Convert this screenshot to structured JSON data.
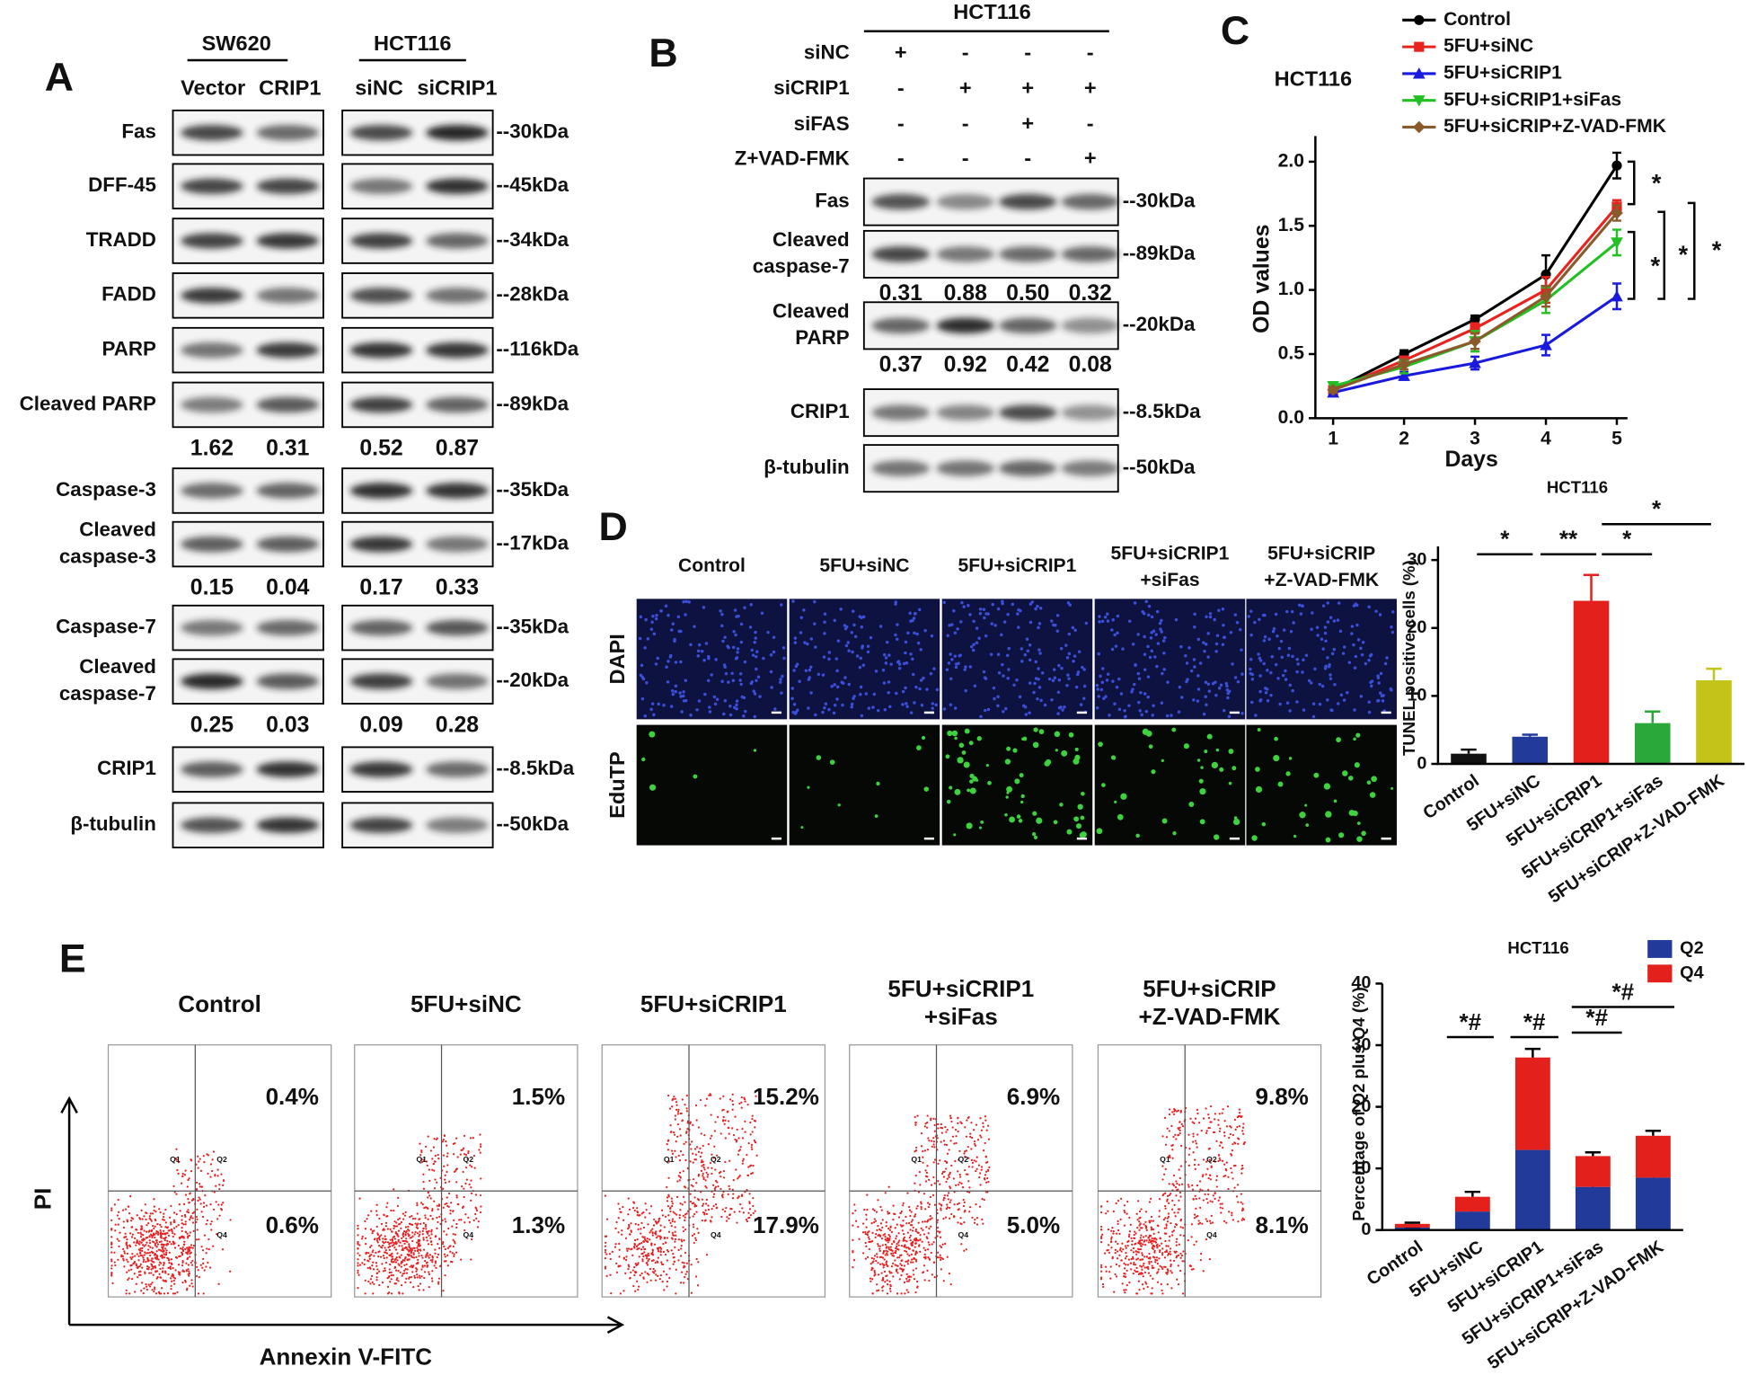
{
  "panel_a": {
    "label": "A",
    "groups": [
      {
        "name": "SW620",
        "lanes": [
          "Vector",
          "CRIP1"
        ]
      },
      {
        "name": "HCT116",
        "lanes": [
          "siNC",
          "siCRIP1"
        ]
      }
    ],
    "rows": [
      {
        "label": [
          "Fas"
        ],
        "size": "--30kDa"
      },
      {
        "label": [
          "DFF-45"
        ],
        "size": "--45kDa"
      },
      {
        "label": [
          "TRADD"
        ],
        "size": "--34kDa"
      },
      {
        "label": [
          "FADD"
        ],
        "size": "--28kDa"
      },
      {
        "label": [
          "PARP"
        ],
        "size": "--116kDa"
      },
      {
        "label": [
          "Cleaved PARP"
        ],
        "size": "--89kDa",
        "quant": [
          "1.62",
          "0.31",
          "0.52",
          "0.87"
        ]
      },
      {
        "label": [
          "Caspase-3"
        ],
        "size": "--35kDa"
      },
      {
        "label": [
          "Cleaved",
          "caspase-3"
        ],
        "size": "--17kDa",
        "quant": [
          "0.15",
          "0.04",
          "0.17",
          "0.33"
        ]
      },
      {
        "label": [
          "Caspase-7"
        ],
        "size": "--35kDa"
      },
      {
        "label": [
          "Cleaved",
          "caspase-7"
        ],
        "size": "--20kDa",
        "quant": [
          "0.25",
          "0.03",
          "0.09",
          "0.28"
        ]
      },
      {
        "label": [
          "CRIP1"
        ],
        "size": "--8.5kDa"
      },
      {
        "label": [
          "β-tubulin"
        ],
        "size": "--50kDa"
      }
    ]
  },
  "panel_b": {
    "label": "B",
    "header": "HCT116",
    "conditions": [
      {
        "name": "siNC",
        "signs": [
          "+",
          "-",
          "-",
          "-"
        ]
      },
      {
        "name": "siCRIP1",
        "signs": [
          "-",
          "+",
          "+",
          "+"
        ]
      },
      {
        "name": "siFAS",
        "signs": [
          "-",
          "-",
          "+",
          "-"
        ]
      },
      {
        "name": "Z+VAD-FMK",
        "signs": [
          "-",
          "-",
          "-",
          "+"
        ]
      }
    ],
    "rows": [
      {
        "label": [
          "Fas"
        ],
        "size": "--30kDa"
      },
      {
        "label": [
          "Cleaved",
          "caspase-7"
        ],
        "size": "--89kDa",
        "quant": [
          "0.31",
          "0.88",
          "0.50",
          "0.32"
        ]
      },
      {
        "label": [
          "Cleaved",
          "PARP"
        ],
        "size": "--20kDa",
        "quant": [
          "0.37",
          "0.92",
          "0.42",
          "0.08"
        ]
      },
      {
        "label": [
          "CRIP1"
        ],
        "size": "--8.5kDa"
      },
      {
        "label": [
          "β-tubulin"
        ],
        "size": "--50kDa"
      }
    ]
  },
  "panel_c": {
    "label": "C"
  },
  "panel_d": {
    "label": "D",
    "columns": [
      [
        "Control"
      ],
      [
        "5FU+siNC"
      ],
      [
        "5FU+siCRIP1"
      ],
      [
        "5FU+siCRIP1",
        "+siFas"
      ],
      [
        "5FU+siCRIP",
        "+Z-VAD-FMK"
      ]
    ],
    "rows": [
      "DAPI",
      "EduTP"
    ]
  },
  "panel_e": {
    "label": "E",
    "columns": [
      [
        "Control"
      ],
      [
        "5FU+siNC"
      ],
      [
        "5FU+siCRIP1"
      ],
      [
        "5FU+siCRIP1",
        "+siFas"
      ],
      [
        "5FU+siCRIP",
        "+Z-VAD-FMK"
      ]
    ],
    "q2": [
      "0.4%",
      "1.5%",
      "15.2%",
      "6.9%",
      "9.8%"
    ],
    "q4": [
      "0.6%",
      "1.3%",
      "17.9%",
      "5.0%",
      "8.1%"
    ],
    "quadrants": [
      "Q1",
      "Q2",
      "Q4"
    ],
    "y_label": "PI",
    "x_label": "Annexin V-FITC"
  },
  "chart_data": [
    {
      "type": "line",
      "title": "HCT116",
      "x_label": "Days",
      "y_label": "OD values",
      "x": [
        1,
        2,
        3,
        4,
        5
      ],
      "xlim": [
        0.75,
        5.15
      ],
      "xticks": [
        1,
        2,
        3,
        4,
        5
      ],
      "ylim": [
        0,
        2.2
      ],
      "yticks": [
        {
          "value": 0,
          "label": "0.0"
        },
        0.5,
        {
          "value": 1,
          "label": "1.0"
        },
        1.5,
        {
          "value": 2,
          "label": "2.0"
        }
      ],
      "series": [
        {
          "name": "Control",
          "color": "#000000",
          "marker": "circle",
          "values": [
            0.22,
            0.5,
            0.77,
            1.12,
            1.97
          ],
          "errors": [
            0.02,
            0.03,
            0.03,
            0.15,
            0.1
          ]
        },
        {
          "name": "5FU+siNC",
          "color": "#e8231f",
          "marker": "square",
          "values": [
            0.22,
            0.45,
            0.7,
            1.0,
            1.65
          ],
          "errors": [
            0.02,
            0.03,
            0.04,
            0.1,
            0.05
          ]
        },
        {
          "name": "5FU+siCRIP1",
          "color": "#1a1adf",
          "marker": "triangle-up",
          "values": [
            0.2,
            0.33,
            0.43,
            0.57,
            0.95
          ],
          "errors": [
            0.02,
            0.03,
            0.05,
            0.08,
            0.1
          ]
        },
        {
          "name": "5FU+siCRIP1+siFas",
          "color": "#22c022",
          "marker": "triangle-down",
          "values": [
            0.25,
            0.4,
            0.6,
            0.92,
            1.37
          ],
          "errors": [
            0.03,
            0.05,
            0.08,
            0.1,
            0.1
          ]
        },
        {
          "name": "5FU+siCRIP+Z-VAD-FMK",
          "color": "#8b5a2b",
          "marker": "diamond",
          "values": [
            0.22,
            0.42,
            0.6,
            0.95,
            1.6
          ],
          "errors": [
            0.02,
            0.04,
            0.06,
            0.08,
            0.06
          ]
        }
      ],
      "annotations": [
        "*",
        "*",
        "*",
        "*"
      ]
    },
    {
      "type": "bar",
      "title": "HCT116",
      "y_label": "TUNEL positive cells (%)",
      "categories": [
        "Control",
        "5FU+siNC",
        "5FU+siCRIP1",
        "5FU+siCRIP1+siFas",
        "5FU+siCRIP+Z-VAD-FMK"
      ],
      "values": [
        1.5,
        4,
        24,
        6,
        12.3
      ],
      "errors": [
        0.6,
        0.3,
        3.8,
        1.7,
        1.7
      ],
      "colors": [
        "#111111",
        "#223a9a",
        "#e3201b",
        "#2aa83a",
        "#c4c418"
      ],
      "ylim": [
        0,
        32
      ],
      "yticks": [
        0,
        10,
        20,
        30
      ],
      "annotations": [
        "*",
        "**",
        "*",
        "*"
      ]
    },
    {
      "type": "bar",
      "stacked": true,
      "title": "HCT116",
      "y_label": "Percentage of Q2 plus Q4 (%)",
      "categories": [
        "Control",
        "5FU+siNC",
        "5FU+siCRIP1",
        "5FU+siCRIP1+siFas",
        "5FU+siCRIP+Z-VAD-FMK"
      ],
      "series": [
        {
          "name": "Q2",
          "color": "#223a9a",
          "values": [
            0.4,
            3,
            13,
            7,
            8.5
          ],
          "errors": [
            0.1,
            0.6,
            1.2,
            0.6,
            0.8
          ]
        },
        {
          "name": "Q4",
          "color": "#e3201b",
          "values": [
            0.6,
            2.4,
            15,
            5,
            6.8
          ],
          "errors": [
            0.2,
            0.8,
            1.4,
            0.6,
            0.8
          ]
        }
      ],
      "ylim": [
        0,
        40
      ],
      "yticks": [
        0,
        10,
        20,
        30,
        40
      ],
      "annotations": [
        "*#",
        "*#",
        "*#",
        "*#"
      ]
    }
  ]
}
